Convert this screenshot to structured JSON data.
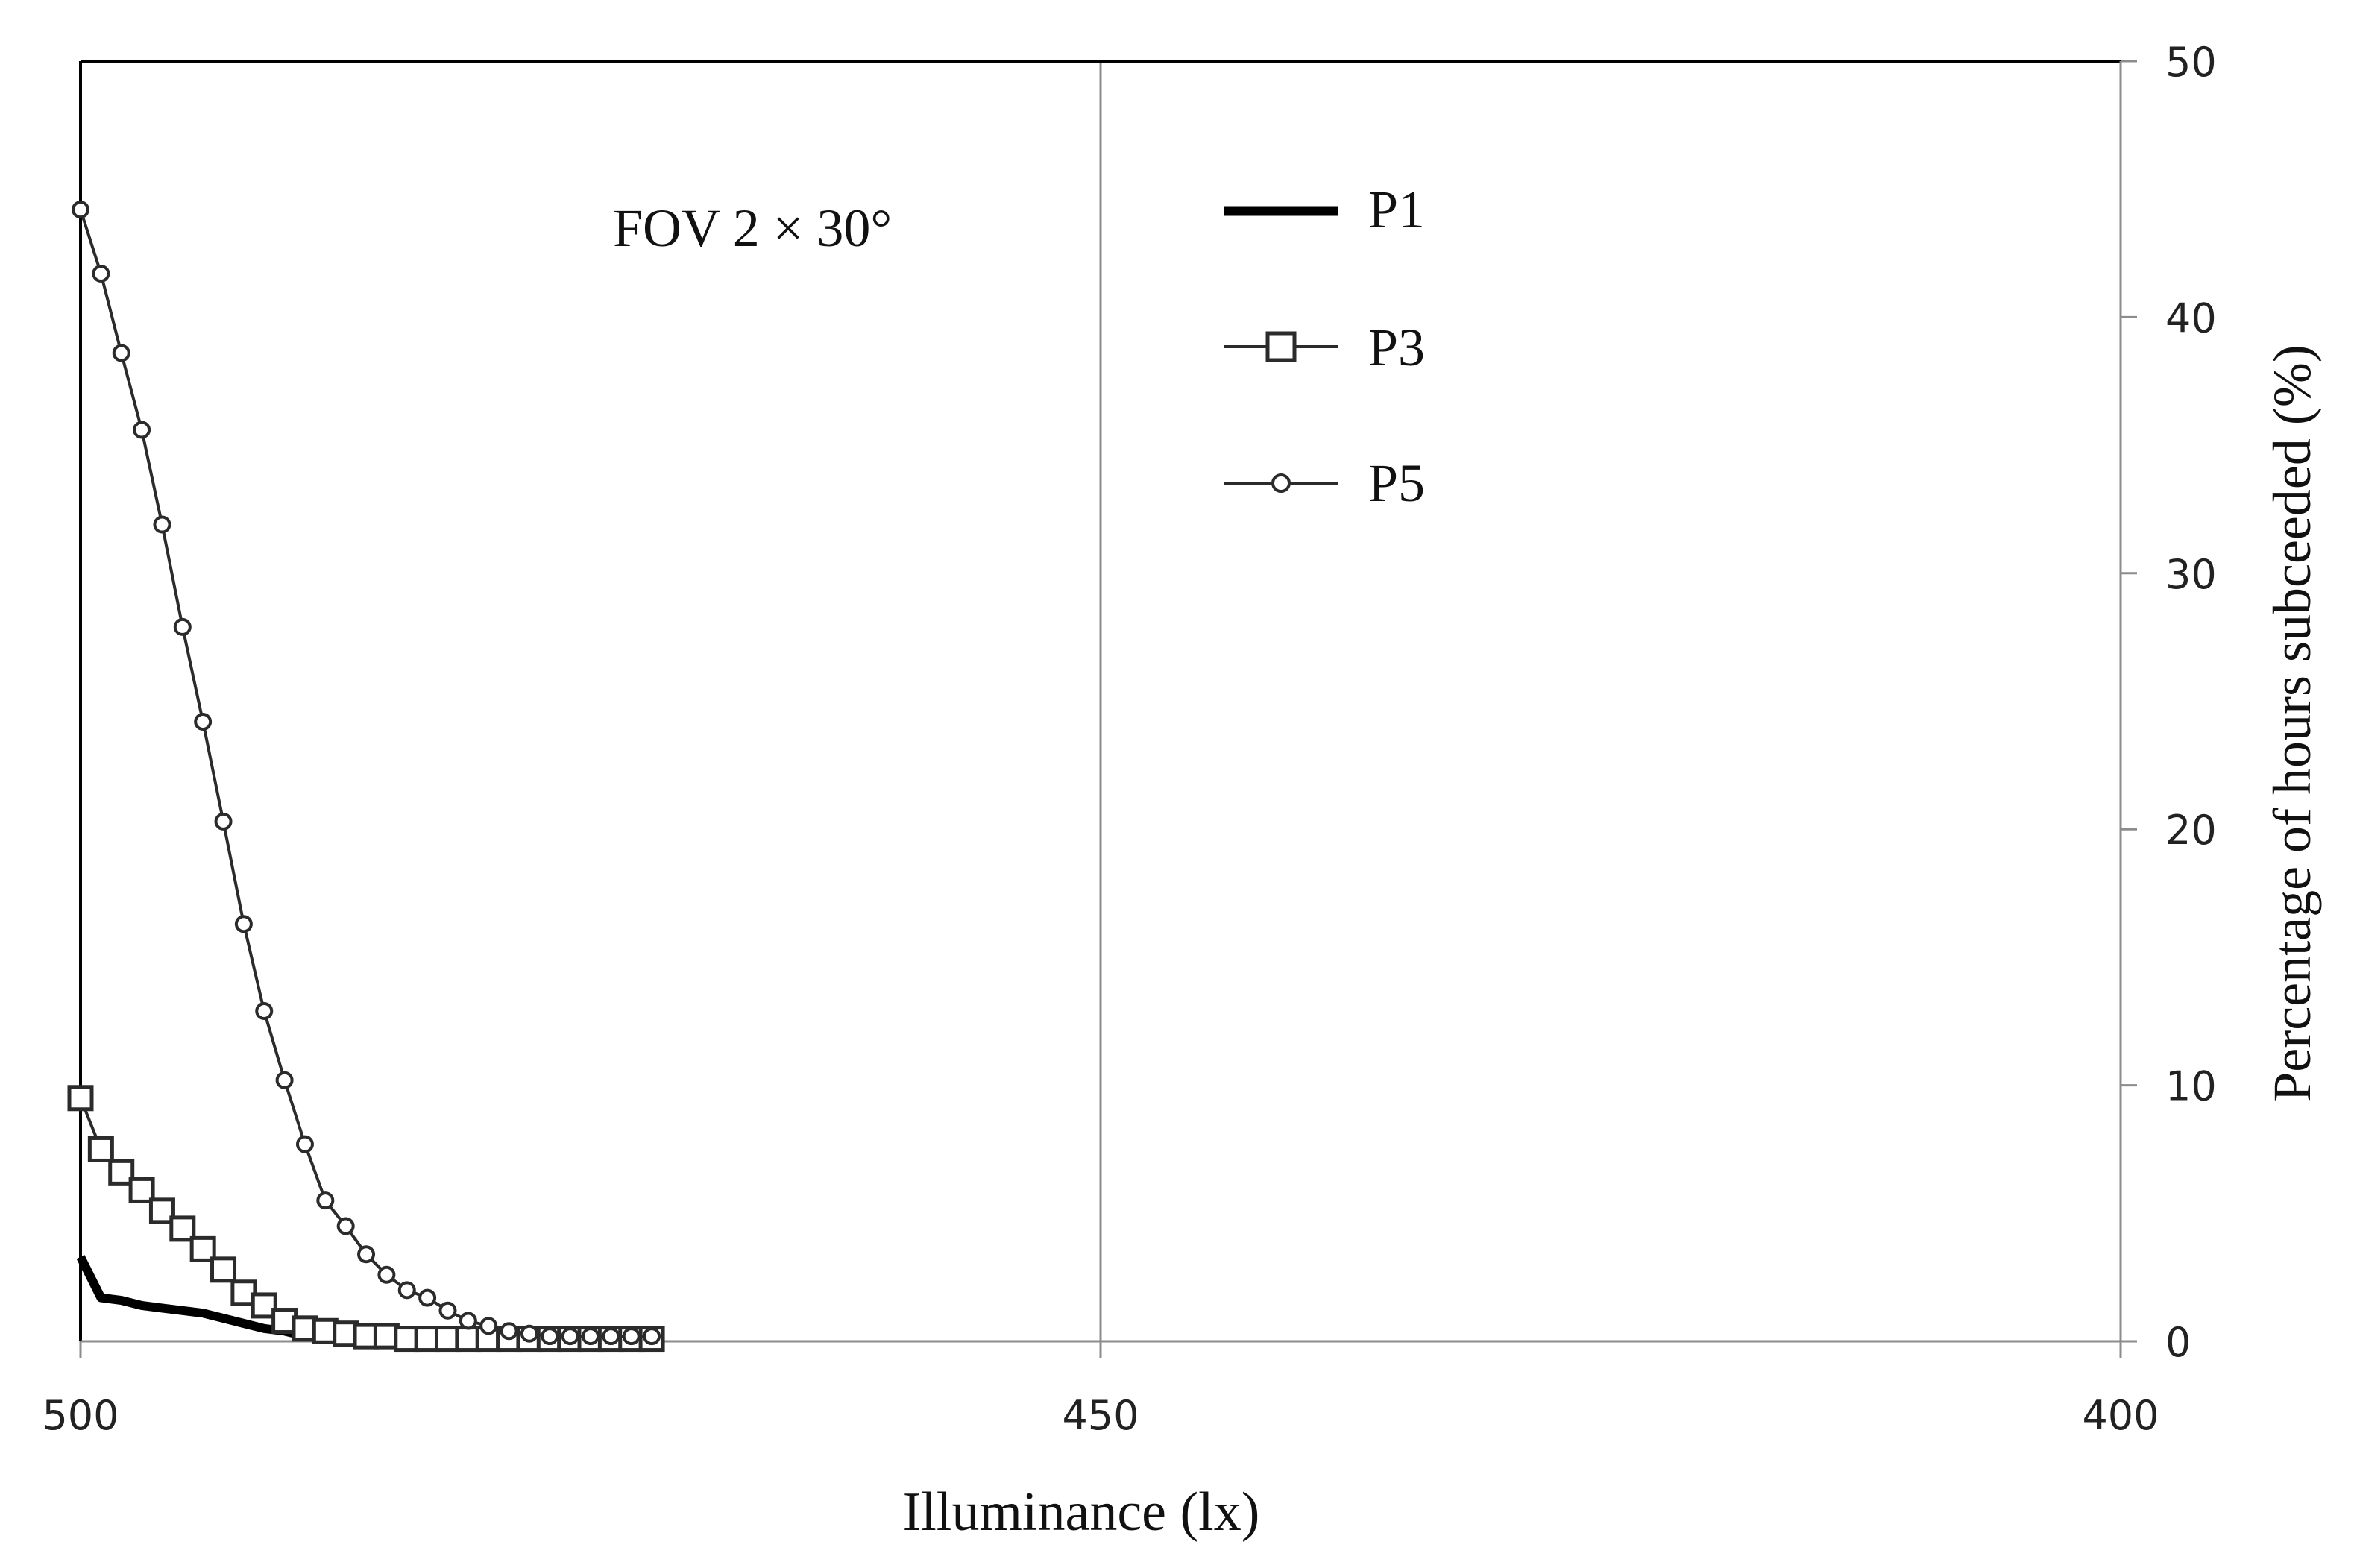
{
  "chart_data": {
    "type": "line",
    "title": "",
    "annotation": "FOV  2 × 30°",
    "xlabel": "Illuminance (lx)",
    "ylabel": "Percentage of hours subceeded (%)",
    "xlim": [
      500,
      400
    ],
    "ylim": [
      0,
      50
    ],
    "x_reversed": true,
    "y_axis_side": "right",
    "x_ticks": [
      500,
      450,
      400
    ],
    "y_ticks": [
      0,
      10,
      20,
      30,
      40,
      50
    ],
    "grid": "vertical lines at x ticks",
    "legend_position": "top-center",
    "series": [
      {
        "name": "P1",
        "marker": "none",
        "style": "thick-solid",
        "x": [
          500,
          499,
          498,
          497,
          496,
          495,
          494,
          493,
          492,
          491,
          490,
          489,
          488,
          487,
          486,
          485,
          484,
          483,
          482,
          481,
          480,
          479,
          478,
          477,
          476,
          475,
          474,
          473,
          472
        ],
        "y": [
          3.3,
          1.7,
          1.6,
          1.4,
          1.3,
          1.2,
          1.1,
          0.9,
          0.7,
          0.5,
          0.4,
          0.2,
          0.2,
          0.1,
          0.1,
          0.1,
          0.1,
          0.1,
          0.1,
          0.1,
          0.1,
          0.1,
          0.1,
          0.1,
          0.1,
          0.1,
          0.1,
          0.1,
          0.1
        ]
      },
      {
        "name": "P3",
        "marker": "square",
        "style": "thin-solid",
        "x": [
          500,
          499,
          498,
          497,
          496,
          495,
          494,
          493,
          492,
          491,
          490,
          489,
          488,
          487,
          486,
          485,
          484,
          483,
          482,
          481,
          480,
          479,
          478,
          477,
          476,
          475,
          474,
          473,
          472
        ],
        "y": [
          9.5,
          7.5,
          6.6,
          5.9,
          5.1,
          4.4,
          3.6,
          2.8,
          1.9,
          1.4,
          0.8,
          0.5,
          0.4,
          0.3,
          0.2,
          0.2,
          0.1,
          0.1,
          0.1,
          0.1,
          0.1,
          0.1,
          0.1,
          0.1,
          0.1,
          0.1,
          0.1,
          0.1,
          0.1
        ]
      },
      {
        "name": "P5",
        "marker": "circle",
        "style": "thin-solid",
        "x": [
          500,
          499,
          498,
          497,
          496,
          495,
          494,
          493,
          492,
          491,
          490,
          489,
          488,
          487,
          486,
          485,
          484,
          483,
          482,
          481,
          480,
          479,
          478,
          477,
          476,
          475,
          474,
          473,
          472
        ],
        "y": [
          44.2,
          41.7,
          38.6,
          35.6,
          31.9,
          27.9,
          24.2,
          20.3,
          16.3,
          12.9,
          10.2,
          7.7,
          5.5,
          4.5,
          3.4,
          2.6,
          2.0,
          1.7,
          1.2,
          0.8,
          0.6,
          0.4,
          0.3,
          0.2,
          0.2,
          0.2,
          0.2,
          0.2,
          0.2
        ]
      }
    ]
  },
  "colors": {
    "axis": "#000000",
    "grid": "#8c8c8c",
    "series_line": "#2b2b2b",
    "p1_line": "#000000",
    "marker_fill": "#ffffff",
    "tick_text": "#222222"
  }
}
